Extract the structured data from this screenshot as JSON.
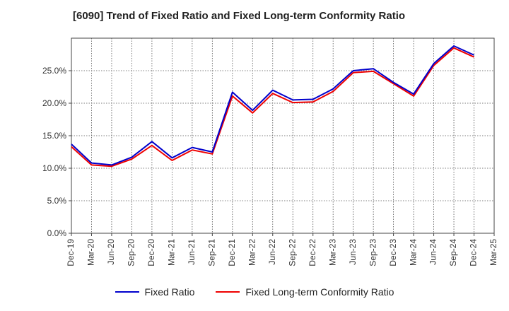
{
  "chart_data": {
    "type": "line",
    "title": "[6090]  Trend of Fixed Ratio and Fixed Long-term Conformity Ratio",
    "xlabel": "",
    "ylabel": "",
    "ylim": [
      0,
      30
    ],
    "yticks": [
      "0.0%",
      "5.0%",
      "10.0%",
      "15.0%",
      "20.0%",
      "25.0%"
    ],
    "ytick_values": [
      0,
      5,
      10,
      15,
      20,
      25
    ],
    "grid": true,
    "legend_position": "bottom",
    "x": [
      "Dec-19",
      "Mar-20",
      "Jun-20",
      "Sep-20",
      "Dec-20",
      "Mar-21",
      "Jun-21",
      "Sep-21",
      "Dec-21",
      "Mar-22",
      "Jun-22",
      "Sep-22",
      "Dec-22",
      "Mar-23",
      "Jun-23",
      "Sep-23",
      "Dec-23",
      "Mar-24",
      "Jun-24",
      "Sep-24",
      "Dec-24",
      "Mar-25"
    ],
    "series": [
      {
        "name": "Fixed Ratio",
        "color": "#0000cc",
        "values": [
          13.7,
          10.8,
          10.5,
          11.7,
          14.1,
          11.6,
          13.2,
          12.5,
          21.7,
          18.9,
          22.0,
          20.5,
          20.6,
          22.2,
          25.0,
          25.3,
          23.2,
          21.4,
          26.1,
          28.8,
          27.4,
          null
        ]
      },
      {
        "name": "Fixed Long-term Conformity Ratio",
        "color": "#ee0000",
        "values": [
          13.3,
          10.5,
          10.3,
          11.4,
          13.5,
          11.2,
          12.8,
          12.2,
          21.1,
          18.5,
          21.5,
          20.1,
          20.2,
          21.8,
          24.7,
          24.9,
          23.0,
          21.1,
          25.8,
          28.5,
          27.1,
          null
        ]
      }
    ]
  }
}
